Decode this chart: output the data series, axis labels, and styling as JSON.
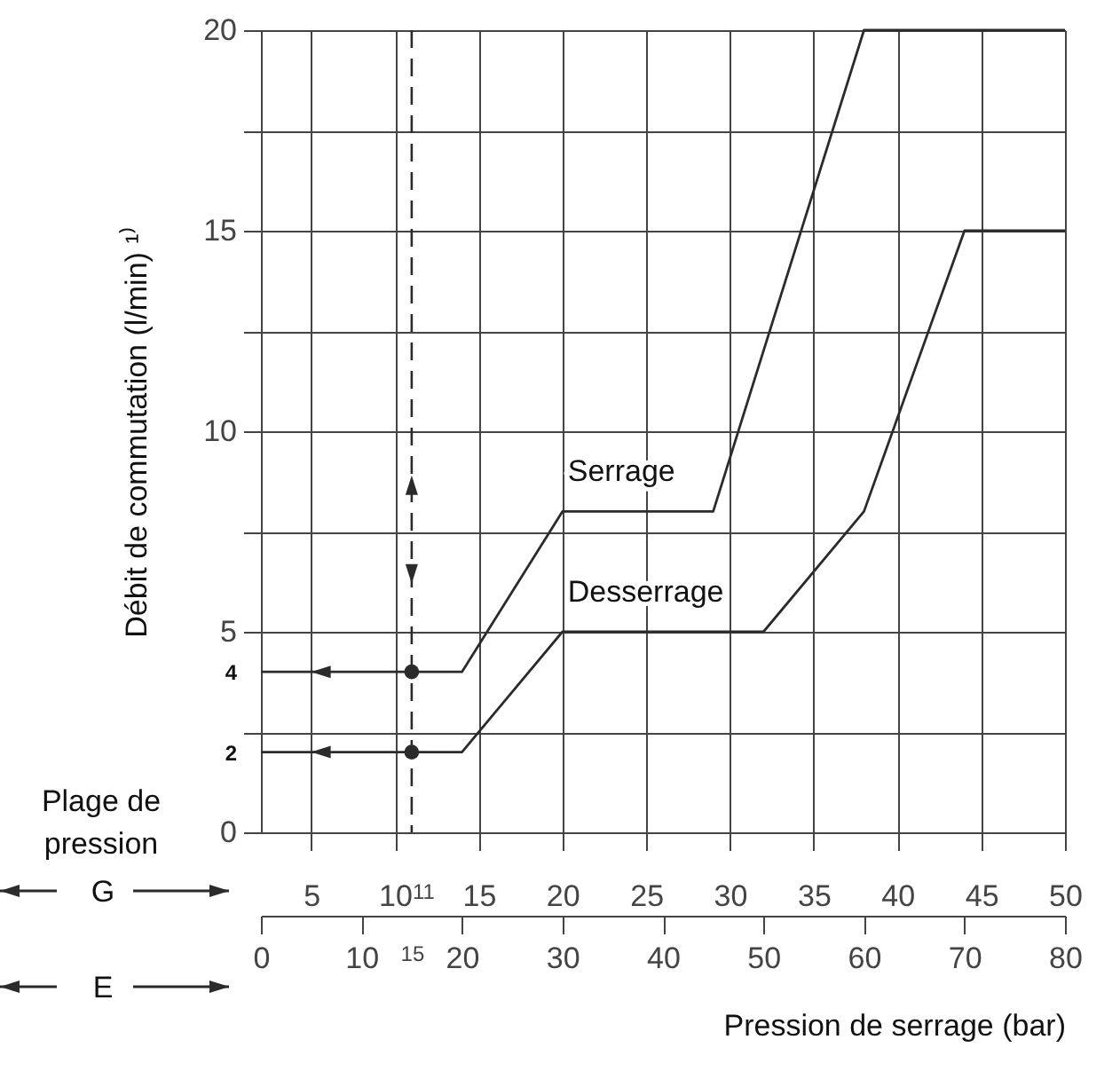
{
  "chart_data": {
    "type": "line",
    "xlabel": "Pression de serrage (bar)",
    "ylabel": "Débit de commutation (l/min) ¹⁾",
    "xlim": [
      0,
      80
    ],
    "xticks": [
      0,
      10,
      {
        "value": 15,
        "label": "15"
      },
      20,
      30,
      40,
      50,
      60,
      70,
      80
    ],
    "x2lim": [
      2,
      50
    ],
    "x2ticks": [
      5,
      10,
      {
        "value": 11,
        "label": "11"
      },
      15,
      20,
      25,
      30,
      35,
      40,
      45,
      50
    ],
    "ylim": [
      0,
      20
    ],
    "yticks": [
      0,
      {
        "value": 2,
        "label": "2"
      },
      {
        "value": 2.5,
        "label": null
      },
      {
        "value": 4,
        "label": "4"
      },
      5,
      {
        "value": 7.5,
        "label": null
      },
      10,
      {
        "value": 12.5,
        "label": null
      },
      15,
      {
        "value": 17.5,
        "label": null
      },
      20
    ],
    "grid": true,
    "series": [
      {
        "name": "Serrage",
        "color": "#2b2b2b",
        "x": [
          15,
          20,
          30,
          45,
          60,
          80
        ],
        "values": [
          4,
          4,
          8,
          8,
          20,
          20
        ]
      },
      {
        "name": "Desserrage",
        "color": "#2b2b2b",
        "x": [
          15,
          20,
          30,
          50,
          60,
          70,
          80
        ],
        "values": [
          2,
          2,
          5,
          5,
          8,
          15,
          15
        ]
      },
      {
        "type": "scatter",
        "color": "#2b2b2b",
        "marker": "circle",
        "x": [
          15,
          15
        ],
        "values": [
          4,
          2
        ]
      }
    ],
    "ref_lines": [
      {
        "axis": "x",
        "value": 15,
        "line_style": "dashed",
        "color": "#2b2b2b"
      }
    ],
    "annotations": [
      "Plage de pression",
      "G",
      "E"
    ]
  }
}
